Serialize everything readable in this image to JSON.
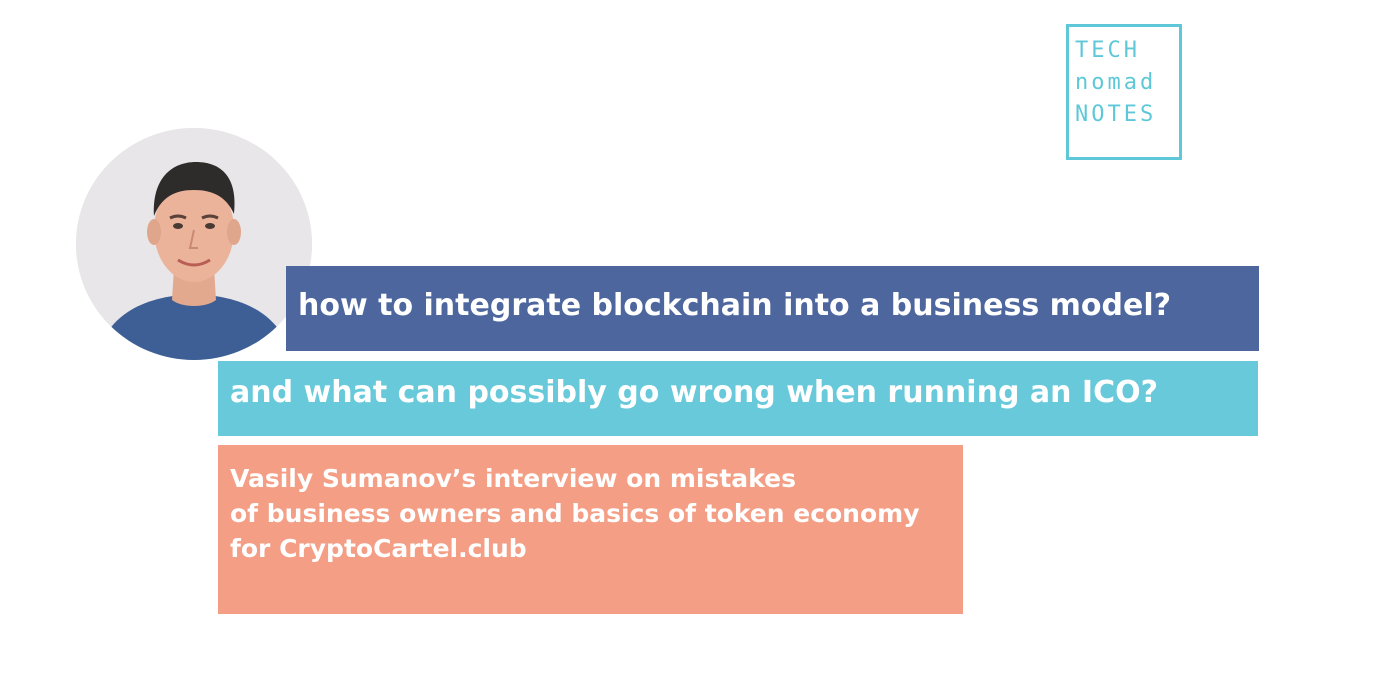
{
  "logo": {
    "line1": "TECH",
    "line2": "nomad",
    "line3": "NOTES",
    "color": "#5fc8d8"
  },
  "avatar": {
    "icon": "person-portrait"
  },
  "headline": {
    "question_1": "how to integrate blockchain into a business model?",
    "question_2": "and what can possibly go wrong when running an ICO?",
    "color_1": "#4d679e",
    "color_2": "#67c9d9"
  },
  "summary": {
    "line1": "Vasily Sumanov’s interview on mistakes",
    "line2": "of business owners and basics of token economy",
    "line3": "for CryptoCartel.club",
    "color": "#f39e85"
  }
}
